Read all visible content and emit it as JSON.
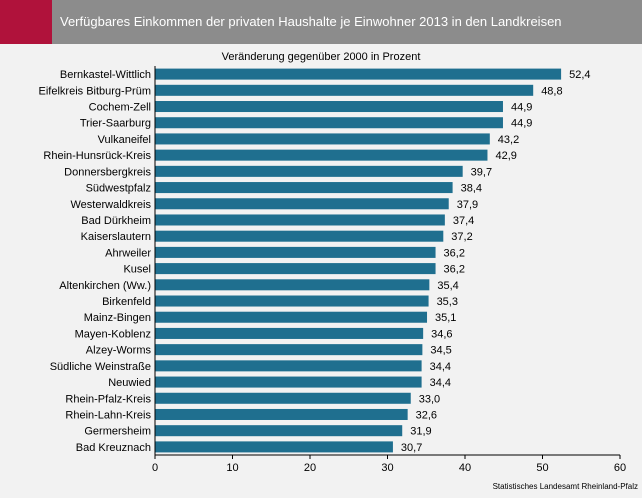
{
  "header": {
    "title": "Verfügbares Einkommen der privaten Haushalte je Einwohner 2013 in den Landkreisen",
    "accent_color": "#b0123b",
    "bar_color": "#8c8c8c"
  },
  "source": "Statistisches Landesamt Rheinland-Pfalz",
  "chart_data": {
    "type": "bar",
    "orientation": "horizontal",
    "title": "Veränderung gegenüber 2000 in Prozent",
    "xlabel": "",
    "ylabel": "",
    "xlim": [
      0,
      60
    ],
    "xticks": [
      0,
      10,
      20,
      30,
      40,
      50,
      60
    ],
    "grid": false,
    "legend": "none",
    "bar_color": "#1f6f8f",
    "categories": [
      "Bernkastel-Wittlich",
      "Eifelkreis Bitburg-Prüm",
      "Cochem-Zell",
      "Trier-Saarburg",
      "Vulkaneifel",
      "Rhein-Hunsrück-Kreis",
      "Donnersbergkreis",
      "Südwestpfalz",
      "Westerwaldkreis",
      "Bad Dürkheim",
      "Kaiserslautern",
      "Ahrweiler",
      "Kusel",
      "Altenkirchen (Ww.)",
      "Birkenfeld",
      "Mainz-Bingen",
      "Mayen-Koblenz",
      "Alzey-Worms",
      "Südliche Weinstraße",
      "Neuwied",
      "Rhein-Pfalz-Kreis",
      "Rhein-Lahn-Kreis",
      "Germersheim",
      "Bad Kreuznach"
    ],
    "values": [
      52.4,
      48.8,
      44.9,
      44.9,
      43.2,
      42.9,
      39.7,
      38.4,
      37.9,
      37.4,
      37.2,
      36.2,
      36.2,
      35.4,
      35.3,
      35.1,
      34.6,
      34.5,
      34.4,
      34.4,
      33.0,
      32.6,
      31.9,
      30.7
    ],
    "value_labels": [
      "52,4",
      "48,8",
      "44,9",
      "44,9",
      "43,2",
      "42,9",
      "39,7",
      "38,4",
      "37,9",
      "37,4",
      "37,2",
      "36,2",
      "36,2",
      "35,4",
      "35,3",
      "35,1",
      "34,6",
      "34,5",
      "34,4",
      "34,4",
      "33,0",
      "32,6",
      "31,9",
      "30,7"
    ]
  }
}
